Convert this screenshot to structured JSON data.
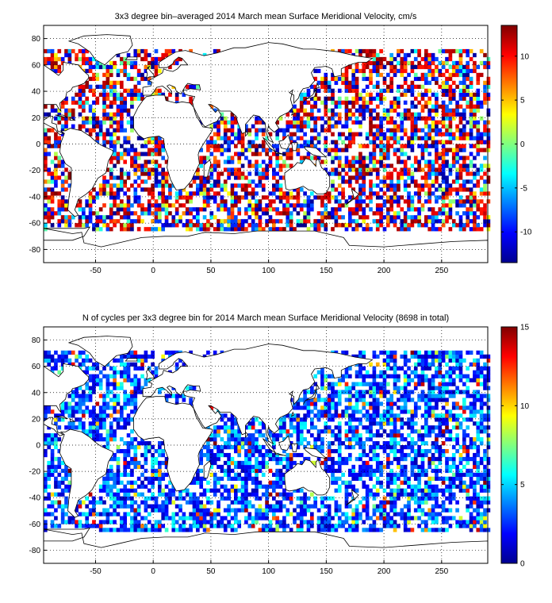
{
  "chart_data": [
    {
      "type": "heatmap",
      "title": "3x3 degree bin–averaged 2014 March mean Surface Meridional Velocity, cm/s",
      "xlim": [
        -95,
        290
      ],
      "ylim": [
        -90,
        90
      ],
      "xticks": [
        "-50",
        "0",
        "50",
        "100",
        "150",
        "200",
        "250"
      ],
      "yticks": [
        "80",
        "60",
        "40",
        "20",
        "0",
        "-20",
        "-40",
        "-60",
        "-80"
      ],
      "grid": true,
      "bin_size_deg": 3,
      "colorbar": {
        "colormap": "jet",
        "range": [
          -13.5,
          13.5
        ],
        "ticks": [
          "10",
          "5",
          "0",
          "-5",
          "-10"
        ]
      },
      "seed": 17
    },
    {
      "type": "heatmap",
      "title": "N of cycles per 3x3 degree bin for 2014 March mean Surface Meridional Velocity (8698 in total)",
      "xlim": [
        -95,
        290
      ],
      "ylim": [
        -90,
        90
      ],
      "xticks": [
        "-50",
        "0",
        "50",
        "100",
        "150",
        "200",
        "250"
      ],
      "yticks": [
        "80",
        "60",
        "40",
        "20",
        "0",
        "-20",
        "-40",
        "-60",
        "-80"
      ],
      "grid": true,
      "bin_size_deg": 3,
      "colorbar": {
        "colormap": "jet",
        "range": [
          0,
          15
        ],
        "ticks": [
          "15",
          "10",
          "5",
          "0"
        ]
      },
      "seed": 91
    }
  ]
}
